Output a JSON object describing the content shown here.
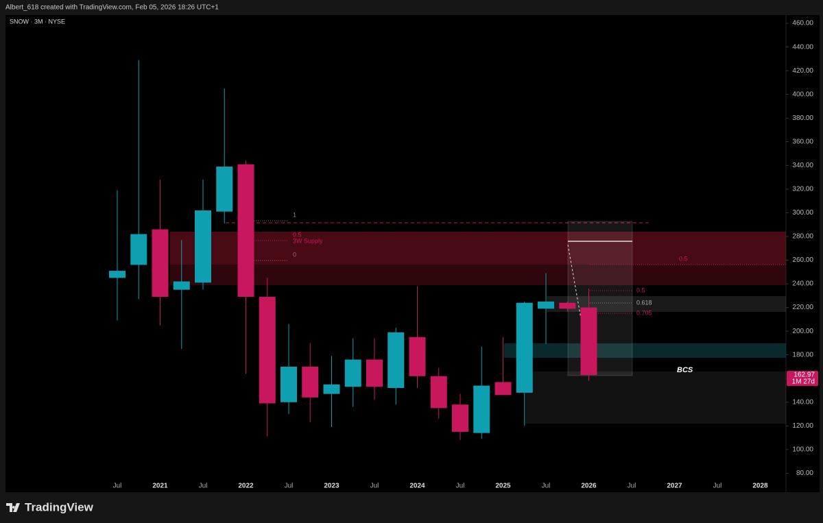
{
  "header": {
    "attribution": "Albert_618 created with TradingView.com, Feb 05, 2026 18:26 UTC+1"
  },
  "footer": {
    "brand": "TradingView"
  },
  "chart_data": {
    "type": "candlestick",
    "title": "SNOW · 3M · NYSE",
    "categories": [
      "Jul",
      null,
      "2021",
      null,
      "Jul",
      null,
      "2022",
      null,
      "Jul",
      null,
      "2023",
      null,
      "Jul",
      null,
      "2024",
      null,
      "Jul",
      null,
      "2025",
      null,
      "Jul",
      null,
      "2026",
      null,
      "Jul",
      null,
      "2027",
      null,
      "Jul",
      null,
      "2028"
    ],
    "open": [
      245,
      256,
      286,
      235,
      241,
      301,
      341,
      229,
      140,
      170,
      147,
      153,
      176,
      152,
      195,
      162,
      138,
      114,
      157,
      148,
      219,
      224,
      220,
      null,
      null,
      null,
      null,
      null,
      null,
      null,
      null
    ],
    "high": [
      319,
      429,
      328,
      277,
      328,
      405,
      344,
      245,
      206,
      190,
      179,
      194,
      194,
      203,
      238,
      169,
      147,
      187,
      195,
      225,
      249,
      225,
      236,
      null,
      null,
      null,
      null,
      null,
      null,
      null,
      null
    ],
    "low": [
      209,
      227,
      205,
      185,
      235,
      291,
      164,
      111,
      130,
      123,
      119,
      136,
      142,
      138,
      152,
      126,
      108,
      109,
      146,
      120,
      189,
      217,
      158,
      null,
      null,
      null,
      null,
      null,
      null,
      null,
      null
    ],
    "close": [
      251,
      282,
      229,
      242,
      302,
      339,
      229,
      139,
      170,
      144,
      155,
      176,
      153,
      199,
      162,
      135,
      115,
      154,
      146,
      224,
      225,
      219,
      162.97,
      null,
      null,
      null,
      null,
      null,
      null,
      null,
      null
    ],
    "up_color": "#0e9fb0",
    "down_color": "#c8175d",
    "countdown": "1M 27d",
    "ylim": [
      64,
      467
    ],
    "yticks": [
      {
        "value": 80,
        "label": "80.00"
      },
      {
        "value": 100,
        "label": "100.00"
      },
      {
        "value": 120,
        "label": "120.00"
      },
      {
        "value": 140,
        "label": "140.00"
      },
      {
        "value": 160,
        "label": "160.00"
      },
      {
        "value": 180,
        "label": "180.00"
      },
      {
        "value": 200,
        "label": "200.00"
      },
      {
        "value": 220,
        "label": "220.00"
      },
      {
        "value": 240,
        "label": "240.00"
      },
      {
        "value": 260,
        "label": "260.00"
      },
      {
        "value": 280,
        "label": "280.00"
      },
      {
        "value": 300,
        "label": "300.00"
      },
      {
        "value": 320,
        "label": "320.00"
      },
      {
        "value": 340,
        "label": "340.00"
      },
      {
        "value": 360,
        "label": "360.00"
      },
      {
        "value": 380,
        "label": "380.00"
      },
      {
        "value": 400,
        "label": "400.00"
      },
      {
        "value": 420,
        "label": "420.00"
      },
      {
        "value": 440,
        "label": "440.00"
      },
      {
        "value": 460,
        "label": "460.00"
      }
    ],
    "annotations": [
      "1",
      "0.5",
      "3W Supply",
      "0",
      "0.5",
      "0.5",
      "0.618",
      "0.705",
      "BCS"
    ]
  }
}
